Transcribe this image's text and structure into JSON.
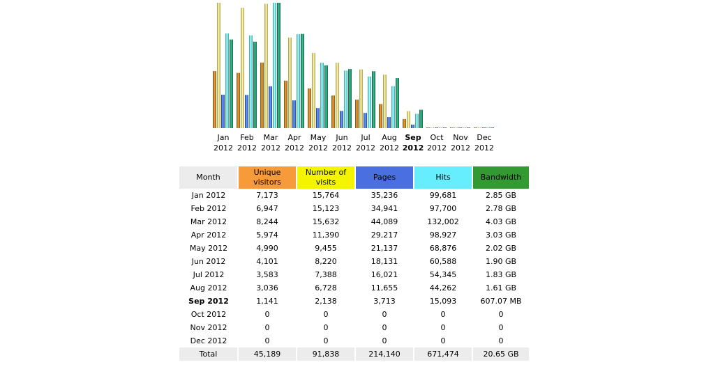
{
  "chart_data": {
    "type": "bar",
    "categories": [
      "Jan 2012",
      "Feb 2012",
      "Mar 2012",
      "Apr 2012",
      "May 2012",
      "Jun 2012",
      "Jul 2012",
      "Aug 2012",
      "Sep 2012",
      "Oct 2012",
      "Nov 2012",
      "Dec 2012"
    ],
    "month_short": [
      "Jan",
      "Feb",
      "Mar",
      "Apr",
      "May",
      "Jun",
      "Jul",
      "Aug",
      "Sep",
      "Oct",
      "Nov",
      "Dec"
    ],
    "year": "2012",
    "current_index": 8,
    "series": [
      {
        "name": "Unique visitors",
        "values": [
          7173,
          6947,
          8244,
          5974,
          4990,
          4101,
          3583,
          3036,
          1141,
          0,
          0,
          0
        ]
      },
      {
        "name": "Number of visits",
        "values": [
          15764,
          15123,
          15632,
          11390,
          9455,
          8220,
          7388,
          6728,
          2138,
          0,
          0,
          0
        ]
      },
      {
        "name": "Pages",
        "values": [
          35236,
          34941,
          44089,
          29217,
          21137,
          18131,
          16021,
          11655,
          3713,
          0,
          0,
          0
        ]
      },
      {
        "name": "Hits",
        "values": [
          99681,
          97700,
          132002,
          98927,
          68876,
          60588,
          54345,
          44262,
          15093,
          0,
          0,
          0
        ]
      },
      {
        "name": "Bandwidth",
        "values": [
          2.85,
          2.78,
          4.03,
          3.03,
          2.02,
          1.9,
          1.83,
          1.61,
          0.59,
          0,
          0,
          0
        ],
        "unit": "GB"
      }
    ],
    "colors": {
      "visitors": [
        "#7a4a08",
        "#f0a040",
        "#8a5a10"
      ],
      "visits": [
        "#a09040",
        "#fffab0",
        "#b0a050"
      ],
      "pages": [
        "#1a3a8a",
        "#6aa0ff",
        "#2a4aa0"
      ],
      "hits": [
        "#2a9a9a",
        "#b0ffff",
        "#30a8a8"
      ],
      "bandwidth": [
        "#0a5a40",
        "#40c090",
        "#106848"
      ]
    },
    "header_colors": {
      "month": "#ececec",
      "visitors": "#f79a3a",
      "visits": "#f4f400",
      "pages": "#4a6fe0",
      "hits": "#66eeff",
      "bandwidth": "#339933"
    }
  },
  "table": {
    "headers": {
      "month": "Month",
      "visitors": "Unique visitors",
      "visits": "Number of visits",
      "pages": "Pages",
      "hits": "Hits",
      "bandwidth": "Bandwidth"
    },
    "rows": [
      {
        "month": "Jan 2012",
        "visitors": "7,173",
        "visits": "15,764",
        "pages": "35,236",
        "hits": "99,681",
        "bandwidth": "2.85 GB"
      },
      {
        "month": "Feb 2012",
        "visitors": "6,947",
        "visits": "15,123",
        "pages": "34,941",
        "hits": "97,700",
        "bandwidth": "2.78 GB"
      },
      {
        "month": "Mar 2012",
        "visitors": "8,244",
        "visits": "15,632",
        "pages": "44,089",
        "hits": "132,002",
        "bandwidth": "4.03 GB"
      },
      {
        "month": "Apr 2012",
        "visitors": "5,974",
        "visits": "11,390",
        "pages": "29,217",
        "hits": "98,927",
        "bandwidth": "3.03 GB"
      },
      {
        "month": "May 2012",
        "visitors": "4,990",
        "visits": "9,455",
        "pages": "21,137",
        "hits": "68,876",
        "bandwidth": "2.02 GB"
      },
      {
        "month": "Jun 2012",
        "visitors": "4,101",
        "visits": "8,220",
        "pages": "18,131",
        "hits": "60,588",
        "bandwidth": "1.90 GB"
      },
      {
        "month": "Jul 2012",
        "visitors": "3,583",
        "visits": "7,388",
        "pages": "16,021",
        "hits": "54,345",
        "bandwidth": "1.83 GB"
      },
      {
        "month": "Aug 2012",
        "visitors": "3,036",
        "visits": "6,728",
        "pages": "11,655",
        "hits": "44,262",
        "bandwidth": "1.61 GB"
      },
      {
        "month": "Sep 2012",
        "visitors": "1,141",
        "visits": "2,138",
        "pages": "3,713",
        "hits": "15,093",
        "bandwidth": "607.07 MB"
      },
      {
        "month": "Oct 2012",
        "visitors": "0",
        "visits": "0",
        "pages": "0",
        "hits": "0",
        "bandwidth": "0"
      },
      {
        "month": "Nov 2012",
        "visitors": "0",
        "visits": "0",
        "pages": "0",
        "hits": "0",
        "bandwidth": "0"
      },
      {
        "month": "Dec 2012",
        "visitors": "0",
        "visits": "0",
        "pages": "0",
        "hits": "0",
        "bandwidth": "0"
      }
    ],
    "total": {
      "month": "Total",
      "visitors": "45,189",
      "visits": "91,838",
      "pages": "214,140",
      "hits": "671,474",
      "bandwidth": "20.65 GB"
    }
  }
}
